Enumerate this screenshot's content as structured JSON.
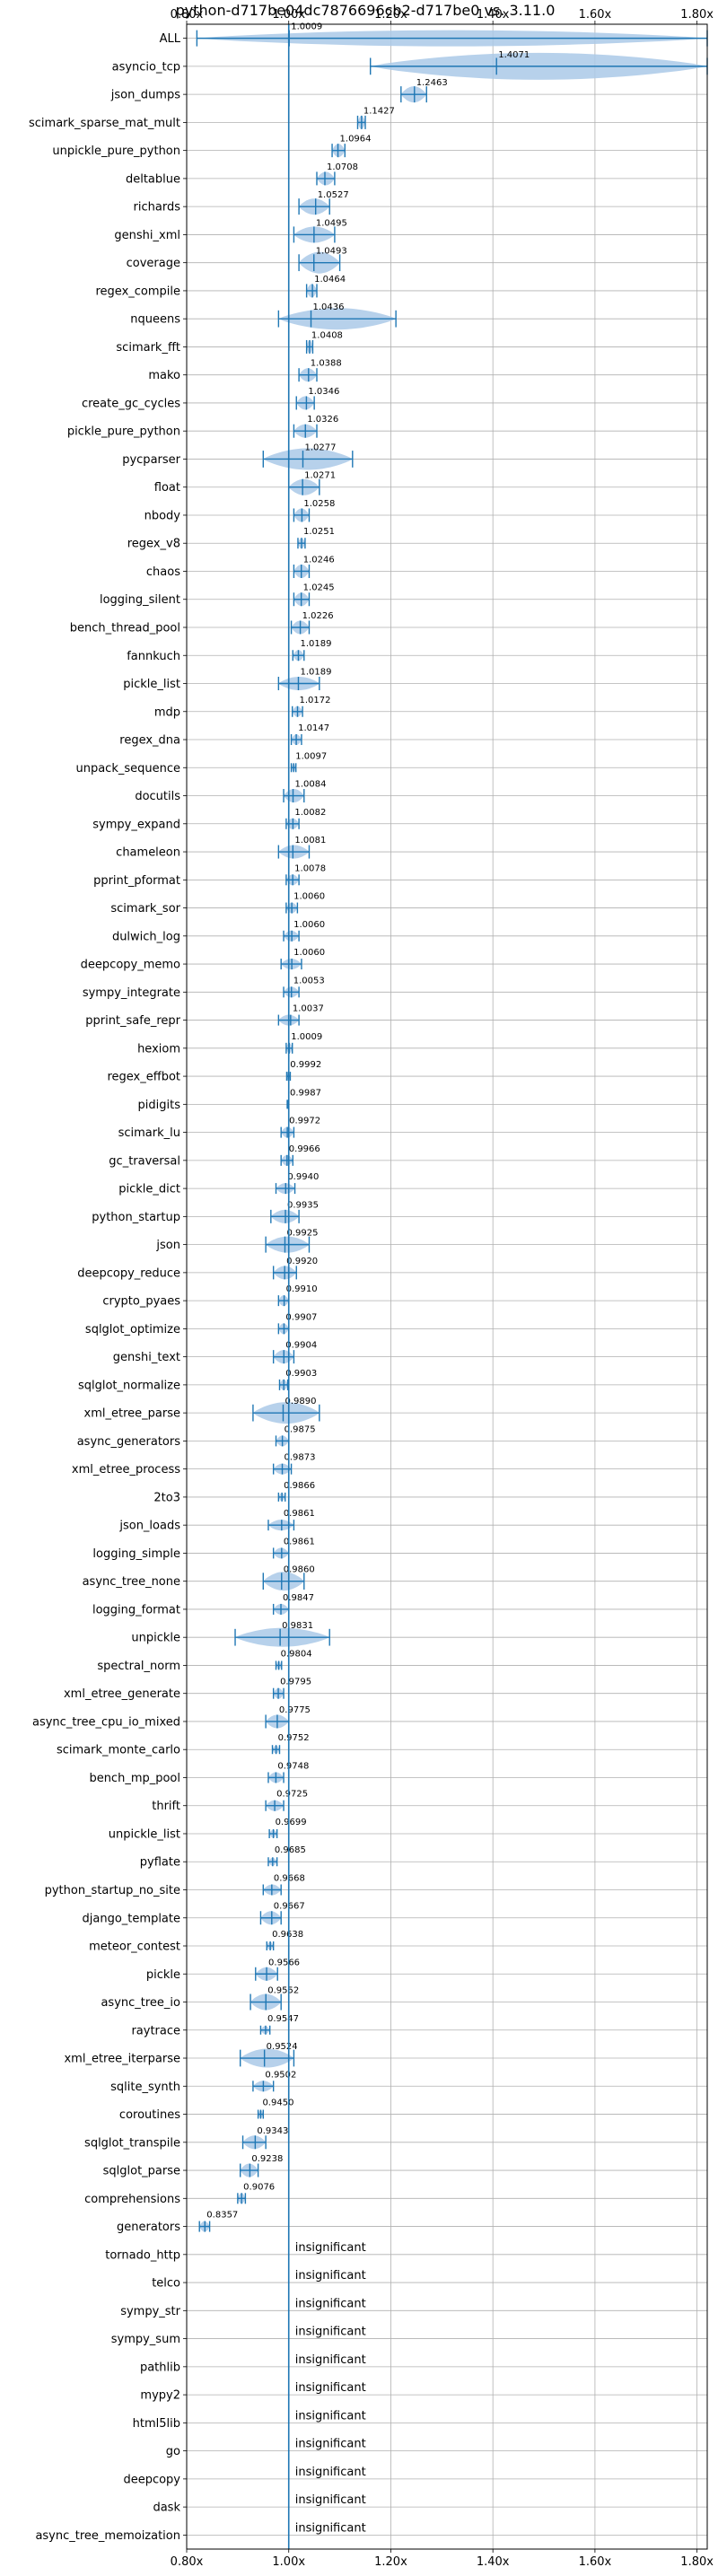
{
  "chart_data": {
    "type": "violin",
    "title": "python-d717be04dc7876696cb2-d717be0 vs. 3.11.0",
    "xlim": [
      0.8,
      1.82
    ],
    "xticks": [
      0.8,
      1.0,
      1.2,
      1.4,
      1.6,
      1.8
    ],
    "xtick_labels": [
      "0.80x",
      "1.00x",
      "1.20x",
      "1.40x",
      "1.60x",
      "1.80x"
    ],
    "reference_line": 1.0,
    "grid": true,
    "insignificant_label": "insignificant",
    "colors": {
      "violin": "#aac9e8",
      "marker": "#1f77b4"
    },
    "benchmarks": [
      {
        "name": "ALL",
        "value": "1.0009",
        "mean": 1.0009,
        "min": 0.82,
        "max": 1.82,
        "width": 0.6
      },
      {
        "name": "asyncio_tcp",
        "value": "1.4071",
        "mean": 1.4071,
        "min": 1.16,
        "max": 1.82,
        "width": 1.0
      },
      {
        "name": "json_dumps",
        "value": "1.2463",
        "mean": 1.2463,
        "min": 1.22,
        "max": 1.27,
        "width": 0.6
      },
      {
        "name": "scimark_sparse_mat_mult",
        "value": "1.1427",
        "mean": 1.1427,
        "min": 1.135,
        "max": 1.15,
        "width": 0.5
      },
      {
        "name": "unpickle_pure_python",
        "value": "1.0964",
        "mean": 1.0964,
        "min": 1.085,
        "max": 1.11,
        "width": 0.5
      },
      {
        "name": "deltablue",
        "value": "1.0708",
        "mean": 1.0708,
        "min": 1.055,
        "max": 1.09,
        "width": 0.5
      },
      {
        "name": "richards",
        "value": "1.0527",
        "mean": 1.0527,
        "min": 1.02,
        "max": 1.08,
        "width": 0.6
      },
      {
        "name": "genshi_xml",
        "value": "1.0495",
        "mean": 1.0495,
        "min": 1.01,
        "max": 1.09,
        "width": 0.6
      },
      {
        "name": "coverage",
        "value": "1.0493",
        "mean": 1.0493,
        "min": 1.02,
        "max": 1.1,
        "width": 0.8
      },
      {
        "name": "regex_compile",
        "value": "1.0464",
        "mean": 1.0464,
        "min": 1.035,
        "max": 1.055,
        "width": 0.5
      },
      {
        "name": "nqueens",
        "value": "1.0436",
        "mean": 1.0436,
        "min": 0.98,
        "max": 1.21,
        "width": 0.8
      },
      {
        "name": "scimark_fft",
        "value": "1.0408",
        "mean": 1.0408,
        "min": 1.035,
        "max": 1.047,
        "width": 0.5
      },
      {
        "name": "mako",
        "value": "1.0388",
        "mean": 1.0388,
        "min": 1.02,
        "max": 1.055,
        "width": 0.5
      },
      {
        "name": "create_gc_cycles",
        "value": "1.0346",
        "mean": 1.0346,
        "min": 1.015,
        "max": 1.05,
        "width": 0.5
      },
      {
        "name": "pickle_pure_python",
        "value": "1.0326",
        "mean": 1.0326,
        "min": 1.01,
        "max": 1.055,
        "width": 0.5
      },
      {
        "name": "pycparser",
        "value": "1.0277",
        "mean": 1.0277,
        "min": 0.95,
        "max": 1.125,
        "width": 0.8
      },
      {
        "name": "float",
        "value": "1.0271",
        "mean": 1.0271,
        "min": 1.0,
        "max": 1.06,
        "width": 0.6
      },
      {
        "name": "nbody",
        "value": "1.0258",
        "mean": 1.0258,
        "min": 1.01,
        "max": 1.04,
        "width": 0.5
      },
      {
        "name": "regex_v8",
        "value": "1.0251",
        "mean": 1.0251,
        "min": 1.018,
        "max": 1.032,
        "width": 0.4
      },
      {
        "name": "chaos",
        "value": "1.0246",
        "mean": 1.0246,
        "min": 1.01,
        "max": 1.04,
        "width": 0.5
      },
      {
        "name": "logging_silent",
        "value": "1.0245",
        "mean": 1.0245,
        "min": 1.01,
        "max": 1.04,
        "width": 0.5
      },
      {
        "name": "bench_thread_pool",
        "value": "1.0226",
        "mean": 1.0226,
        "min": 1.005,
        "max": 1.04,
        "width": 0.5
      },
      {
        "name": "fannkuch",
        "value": "1.0189",
        "mean": 1.0189,
        "min": 1.008,
        "max": 1.03,
        "width": 0.4
      },
      {
        "name": "pickle_list",
        "value": "1.0189",
        "mean": 1.0189,
        "min": 0.98,
        "max": 1.06,
        "width": 0.5
      },
      {
        "name": "mdp",
        "value": "1.0172",
        "mean": 1.0172,
        "min": 1.007,
        "max": 1.027,
        "width": 0.4
      },
      {
        "name": "regex_dna",
        "value": "1.0147",
        "mean": 1.0147,
        "min": 1.005,
        "max": 1.025,
        "width": 0.4
      },
      {
        "name": "unpack_sequence",
        "value": "1.0097",
        "mean": 1.0097,
        "min": 1.005,
        "max": 1.014,
        "width": 0.3
      },
      {
        "name": "docutils",
        "value": "1.0084",
        "mean": 1.0084,
        "min": 0.99,
        "max": 1.03,
        "width": 0.5
      },
      {
        "name": "sympy_expand",
        "value": "1.0082",
        "mean": 1.0082,
        "min": 0.995,
        "max": 1.02,
        "width": 0.4
      },
      {
        "name": "chameleon",
        "value": "1.0081",
        "mean": 1.0081,
        "min": 0.98,
        "max": 1.04,
        "width": 0.5
      },
      {
        "name": "pprint_pformat",
        "value": "1.0078",
        "mean": 1.0078,
        "min": 0.995,
        "max": 1.02,
        "width": 0.4
      },
      {
        "name": "scimark_sor",
        "value": "1.0060",
        "mean": 1.006,
        "min": 0.995,
        "max": 1.017,
        "width": 0.4
      },
      {
        "name": "dulwich_log",
        "value": "1.0060",
        "mean": 1.006,
        "min": 0.99,
        "max": 1.02,
        "width": 0.4
      },
      {
        "name": "deepcopy_memo",
        "value": "1.0060",
        "mean": 1.006,
        "min": 0.985,
        "max": 1.025,
        "width": 0.4
      },
      {
        "name": "sympy_integrate",
        "value": "1.0053",
        "mean": 1.0053,
        "min": 0.99,
        "max": 1.02,
        "width": 0.4
      },
      {
        "name": "pprint_safe_repr",
        "value": "1.0037",
        "mean": 1.0037,
        "min": 0.98,
        "max": 1.02,
        "width": 0.4
      },
      {
        "name": "hexiom",
        "value": "1.0009",
        "mean": 1.0009,
        "min": 0.995,
        "max": 1.007,
        "width": 0.4
      },
      {
        "name": "regex_effbot",
        "value": "0.9992",
        "mean": 0.9992,
        "min": 0.996,
        "max": 1.003,
        "width": 0.3
      },
      {
        "name": "pidigits",
        "value": "0.9987",
        "mean": 0.9987,
        "min": 0.997,
        "max": 1.0,
        "width": 0.2
      },
      {
        "name": "scimark_lu",
        "value": "0.9972",
        "mean": 0.9972,
        "min": 0.985,
        "max": 1.01,
        "width": 0.4
      },
      {
        "name": "gc_traversal",
        "value": "0.9966",
        "mean": 0.9966,
        "min": 0.985,
        "max": 1.008,
        "width": 0.4
      },
      {
        "name": "pickle_dict",
        "value": "0.9940",
        "mean": 0.994,
        "min": 0.975,
        "max": 1.012,
        "width": 0.4
      },
      {
        "name": "python_startup",
        "value": "0.9935",
        "mean": 0.9935,
        "min": 0.965,
        "max": 1.02,
        "width": 0.5
      },
      {
        "name": "json",
        "value": "0.9925",
        "mean": 0.9925,
        "min": 0.955,
        "max": 1.04,
        "width": 0.6
      },
      {
        "name": "deepcopy_reduce",
        "value": "0.9920",
        "mean": 0.992,
        "min": 0.97,
        "max": 1.015,
        "width": 0.5
      },
      {
        "name": "crypto_pyaes",
        "value": "0.9910",
        "mean": 0.991,
        "min": 0.98,
        "max": 1.0,
        "width": 0.4
      },
      {
        "name": "sqlglot_optimize",
        "value": "0.9907",
        "mean": 0.9907,
        "min": 0.98,
        "max": 1.0,
        "width": 0.4
      },
      {
        "name": "genshi_text",
        "value": "0.9904",
        "mean": 0.9904,
        "min": 0.97,
        "max": 1.01,
        "width": 0.5
      },
      {
        "name": "sqlglot_normalize",
        "value": "0.9903",
        "mean": 0.9903,
        "min": 0.982,
        "max": 0.998,
        "width": 0.4
      },
      {
        "name": "xml_etree_parse",
        "value": "0.9890",
        "mean": 0.989,
        "min": 0.93,
        "max": 1.06,
        "width": 0.8
      },
      {
        "name": "async_generators",
        "value": "0.9875",
        "mean": 0.9875,
        "min": 0.975,
        "max": 1.0,
        "width": 0.4
      },
      {
        "name": "xml_etree_process",
        "value": "0.9873",
        "mean": 0.9873,
        "min": 0.97,
        "max": 1.005,
        "width": 0.4
      },
      {
        "name": "2to3",
        "value": "0.9866",
        "mean": 0.9866,
        "min": 0.98,
        "max": 0.993,
        "width": 0.3
      },
      {
        "name": "json_loads",
        "value": "0.9861",
        "mean": 0.9861,
        "min": 0.96,
        "max": 1.01,
        "width": 0.4
      },
      {
        "name": "logging_simple",
        "value": "0.9861",
        "mean": 0.9861,
        "min": 0.97,
        "max": 1.0,
        "width": 0.4
      },
      {
        "name": "async_tree_none",
        "value": "0.9860",
        "mean": 0.986,
        "min": 0.95,
        "max": 1.03,
        "width": 0.7
      },
      {
        "name": "logging_format",
        "value": "0.9847",
        "mean": 0.9847,
        "min": 0.97,
        "max": 1.0,
        "width": 0.4
      },
      {
        "name": "unpickle",
        "value": "0.9831",
        "mean": 0.9831,
        "min": 0.895,
        "max": 1.08,
        "width": 0.7
      },
      {
        "name": "spectral_norm",
        "value": "0.9804",
        "mean": 0.9804,
        "min": 0.975,
        "max": 0.986,
        "width": 0.3
      },
      {
        "name": "xml_etree_generate",
        "value": "0.9795",
        "mean": 0.9795,
        "min": 0.97,
        "max": 0.99,
        "width": 0.4
      },
      {
        "name": "async_tree_cpu_io_mixed",
        "value": "0.9775",
        "mean": 0.9775,
        "min": 0.955,
        "max": 1.0,
        "width": 0.5
      },
      {
        "name": "scimark_monte_carlo",
        "value": "0.9752",
        "mean": 0.9752,
        "min": 0.968,
        "max": 0.982,
        "width": 0.3
      },
      {
        "name": "bench_mp_pool",
        "value": "0.9748",
        "mean": 0.9748,
        "min": 0.96,
        "max": 0.99,
        "width": 0.4
      },
      {
        "name": "thrift",
        "value": "0.9725",
        "mean": 0.9725,
        "min": 0.955,
        "max": 0.99,
        "width": 0.4
      },
      {
        "name": "unpickle_list",
        "value": "0.9699",
        "mean": 0.9699,
        "min": 0.962,
        "max": 0.977,
        "width": 0.3
      },
      {
        "name": "pyflate",
        "value": "0.9685",
        "mean": 0.9685,
        "min": 0.96,
        "max": 0.977,
        "width": 0.3
      },
      {
        "name": "python_startup_no_site",
        "value": "0.9668",
        "mean": 0.9668,
        "min": 0.95,
        "max": 0.985,
        "width": 0.4
      },
      {
        "name": "django_template",
        "value": "0.9667",
        "mean": 0.9667,
        "min": 0.945,
        "max": 0.985,
        "width": 0.5
      },
      {
        "name": "meteor_contest",
        "value": "0.9638",
        "mean": 0.9638,
        "min": 0.957,
        "max": 0.97,
        "width": 0.3
      },
      {
        "name": "pickle",
        "value": "0.9566",
        "mean": 0.9566,
        "min": 0.935,
        "max": 0.978,
        "width": 0.5
      },
      {
        "name": "async_tree_io",
        "value": "0.9552",
        "mean": 0.9552,
        "min": 0.925,
        "max": 0.985,
        "width": 0.6
      },
      {
        "name": "raytrace",
        "value": "0.9547",
        "mean": 0.9547,
        "min": 0.945,
        "max": 0.963,
        "width": 0.3
      },
      {
        "name": "xml_etree_iterparse",
        "value": "0.9524",
        "mean": 0.9524,
        "min": 0.905,
        "max": 1.01,
        "width": 0.7
      },
      {
        "name": "sqlite_synth",
        "value": "0.9502",
        "mean": 0.9502,
        "min": 0.93,
        "max": 0.97,
        "width": 0.4
      },
      {
        "name": "coroutines",
        "value": "0.9450",
        "mean": 0.945,
        "min": 0.94,
        "max": 0.95,
        "width": 0.3
      },
      {
        "name": "sqlglot_transpile",
        "value": "0.9343",
        "mean": 0.9343,
        "min": 0.91,
        "max": 0.955,
        "width": 0.5
      },
      {
        "name": "sqlglot_parse",
        "value": "0.9238",
        "mean": 0.9238,
        "min": 0.905,
        "max": 0.94,
        "width": 0.5
      },
      {
        "name": "comprehensions",
        "value": "0.9076",
        "mean": 0.9076,
        "min": 0.9,
        "max": 0.915,
        "width": 0.4
      },
      {
        "name": "generators",
        "value": "0.8357",
        "mean": 0.8357,
        "min": 0.825,
        "max": 0.845,
        "width": 0.4
      },
      {
        "name": "tornado_http",
        "insignificant": true
      },
      {
        "name": "telco",
        "insignificant": true
      },
      {
        "name": "sympy_str",
        "insignificant": true
      },
      {
        "name": "sympy_sum",
        "insignificant": true
      },
      {
        "name": "pathlib",
        "insignificant": true
      },
      {
        "name": "mypy2",
        "insignificant": true
      },
      {
        "name": "html5lib",
        "insignificant": true
      },
      {
        "name": "go",
        "insignificant": true
      },
      {
        "name": "deepcopy",
        "insignificant": true
      },
      {
        "name": "dask",
        "insignificant": true
      },
      {
        "name": "async_tree_memoization",
        "insignificant": true
      }
    ]
  }
}
